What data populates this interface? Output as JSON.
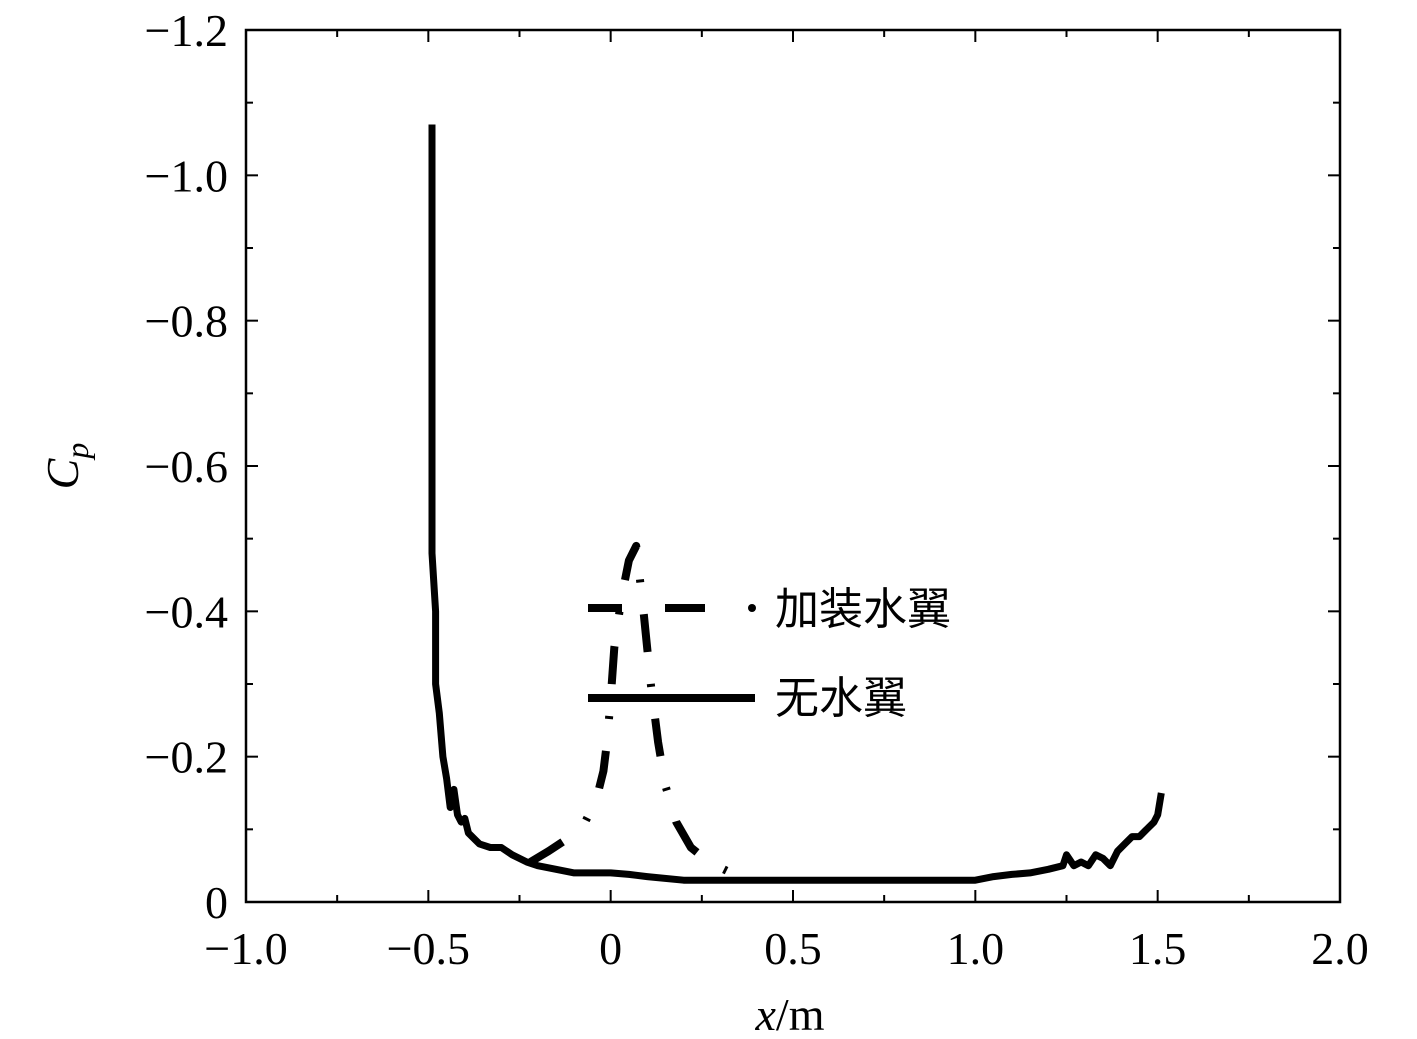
{
  "chart_data": {
    "type": "line",
    "xlabel_var": "x",
    "xlabel_unit": "/m",
    "ylabel_var": "C",
    "ylabel_sub": "p",
    "xlim": [
      -1.0,
      2.0
    ],
    "ylim": [
      -1.2,
      0
    ],
    "x_ticks": [
      -1.0,
      -0.5,
      0,
      0.5,
      1.0,
      1.5,
      2.0
    ],
    "x_tick_labels": [
      "−1.0",
      "−0.5",
      "0",
      "0.5",
      "1.0",
      "1.5",
      "2.0"
    ],
    "y_ticks": [
      0,
      -0.2,
      -0.4,
      -0.6,
      -0.8,
      -1.0,
      -1.2
    ],
    "y_tick_labels": [
      "0",
      "−0.2",
      "−0.4",
      "−0.6",
      "−0.8",
      "−1.0",
      "−1.2"
    ],
    "grid": false,
    "legend_position": "center",
    "highlight_box": {
      "x": [
        -0.26,
        0.46
      ],
      "y": [
        -0.02,
        -0.53
      ]
    },
    "series": [
      {
        "name": "加装水翼",
        "style": "dashed",
        "color": "#000000",
        "x": [
          -0.22,
          -0.17,
          -0.11,
          -0.07,
          -0.04,
          -0.02,
          -0.01,
          0.0,
          0.01,
          0.03,
          0.05,
          0.07,
          0.09,
          0.11,
          0.13,
          0.15,
          0.18,
          0.22,
          0.27,
          0.33,
          0.35
        ],
        "y": [
          -0.055,
          -0.07,
          -0.09,
          -0.11,
          -0.14,
          -0.18,
          -0.22,
          -0.28,
          -0.35,
          -0.42,
          -0.47,
          -0.49,
          -0.4,
          -0.3,
          -0.22,
          -0.16,
          -0.11,
          -0.075,
          -0.055,
          -0.04,
          -0.035
        ]
      },
      {
        "name": "无水翼",
        "style": "solid",
        "color": "#000000",
        "x": [
          -0.49,
          -0.49,
          -0.49,
          -0.48,
          -0.48,
          -0.47,
          -0.46,
          -0.45,
          -0.44,
          -0.43,
          -0.42,
          -0.41,
          -0.4,
          -0.39,
          -0.37,
          -0.36,
          -0.33,
          -0.3,
          -0.27,
          -0.23,
          -0.2,
          -0.15,
          -0.1,
          -0.05,
          0.0,
          0.05,
          0.1,
          0.2,
          0.3,
          0.4,
          0.5,
          0.6,
          0.7,
          0.8,
          0.9,
          1.0,
          1.05,
          1.1,
          1.15,
          1.2,
          1.24,
          1.25,
          1.27,
          1.29,
          1.31,
          1.33,
          1.35,
          1.37,
          1.39,
          1.41,
          1.43,
          1.45,
          1.47,
          1.49,
          1.5,
          1.51
        ],
        "y": [
          -1.07,
          -0.7,
          -0.48,
          -0.4,
          -0.3,
          -0.26,
          -0.2,
          -0.17,
          -0.13,
          -0.155,
          -0.12,
          -0.11,
          -0.115,
          -0.095,
          -0.085,
          -0.08,
          -0.075,
          -0.075,
          -0.065,
          -0.055,
          -0.05,
          -0.045,
          -0.04,
          -0.04,
          -0.04,
          -0.038,
          -0.035,
          -0.03,
          -0.03,
          -0.03,
          -0.03,
          -0.03,
          -0.03,
          -0.03,
          -0.03,
          -0.03,
          -0.035,
          -0.038,
          -0.04,
          -0.045,
          -0.05,
          -0.065,
          -0.05,
          -0.055,
          -0.05,
          -0.065,
          -0.06,
          -0.05,
          -0.07,
          -0.08,
          -0.09,
          -0.09,
          -0.1,
          -0.11,
          -0.12,
          -0.15
        ]
      }
    ]
  }
}
